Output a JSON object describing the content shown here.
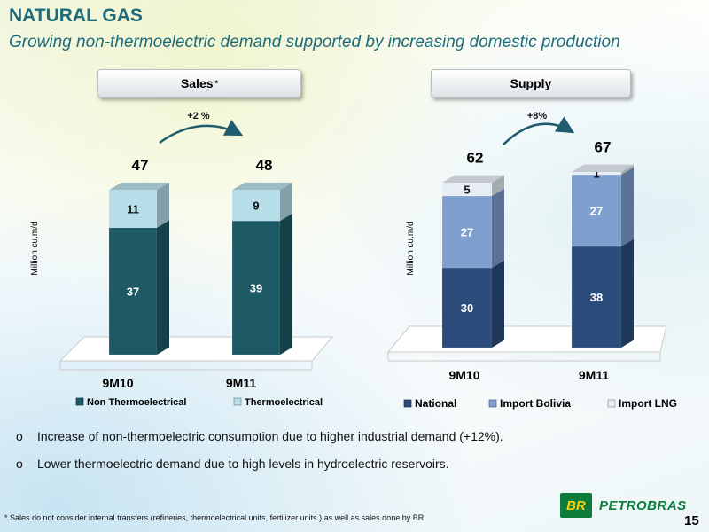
{
  "header": {
    "title": "NATURAL GAS",
    "subtitle": "Growing non-thermoelectric demand supported by increasing domestic production"
  },
  "sales_panel": {
    "label": "Sales",
    "marker": "*"
  },
  "supply_panel": {
    "label": "Supply"
  },
  "colors": {
    "non_thermo": "#1e5a66",
    "thermo": "#b6dde8",
    "national": "#2b4c7b",
    "import_bolivia": "#7f9fcf",
    "import_lng": "#e6edf5",
    "arrow": "#1f5c6e"
  },
  "chart_data": [
    {
      "type": "bar",
      "stacked": true,
      "title": "",
      "ylabel": "Million cu.m/d",
      "categories": [
        "9M10",
        "9M11"
      ],
      "series": [
        {
          "name": "Non Thermoelectrical",
          "values": [
            37,
            39
          ],
          "color": "#1e5a66"
        },
        {
          "name": "Thermoelectrical",
          "values": [
            11,
            9
          ],
          "color": "#b6dde8"
        }
      ],
      "totals": [
        "47",
        "48"
      ],
      "growth_label": "+2 %",
      "legend_position": "bottom",
      "ylim": [
        0,
        55
      ]
    },
    {
      "type": "bar",
      "stacked": true,
      "title": "",
      "ylabel": "Million cu.m/d",
      "categories": [
        "9M10",
        "9M11"
      ],
      "series": [
        {
          "name": "National",
          "values": [
            30,
            38
          ],
          "color": "#2b4c7b"
        },
        {
          "name": "Import Bolivia",
          "values": [
            27,
            27
          ],
          "color": "#7f9fcf"
        },
        {
          "name": "Import LNG",
          "values": [
            5,
            1
          ],
          "color": "#e6edf5"
        }
      ],
      "totals": [
        "62",
        "67"
      ],
      "growth_label": "+8%",
      "legend_position": "bottom",
      "ylim": [
        0,
        72
      ]
    }
  ],
  "bullets": [
    {
      "marker": "o",
      "text": "Increase  of non-thermoelectric consumption due to higher industrial demand (+12%)."
    },
    {
      "marker": "o",
      "text": "Lower thermoelectric demand  due to high levels in  hydroelectric  reservoirs."
    }
  ],
  "footnote": "* Sales do not consider internal transfers (refineries, thermoelectrical units,  fertilizer units  ) as well as  sales done by BR",
  "logo": {
    "mark": "BR",
    "name": "PETROBRAS"
  },
  "page_number": "15"
}
